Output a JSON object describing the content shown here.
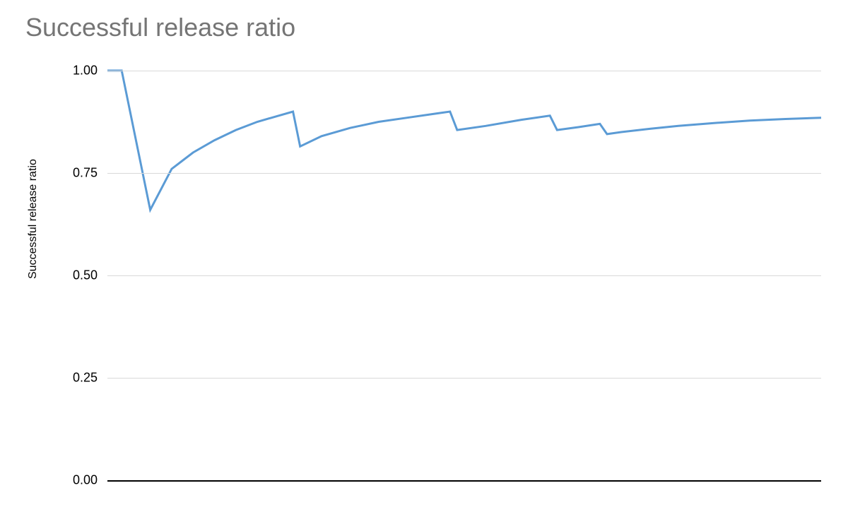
{
  "chart": {
    "type": "line",
    "title": "Successful release ratio",
    "title_fontsize": 36,
    "title_color": "#757575",
    "y_axis_label": "Successful release ratio",
    "y_axis_label_fontsize": 16,
    "y_axis_label_color": "#000000",
    "background_color": "#ffffff",
    "grid_color": "#d9d9d9",
    "axis_line_color": "#000000",
    "line_color": "#5b9bd5",
    "line_width": 3,
    "ylim": [
      0,
      1
    ],
    "yticks": [
      0.0,
      0.25,
      0.5,
      0.75,
      1.0
    ],
    "ytick_labels": [
      "0.00",
      "0.25",
      "0.50",
      "0.75",
      "1.00"
    ],
    "tick_fontsize": 18,
    "tick_color": "#000000",
    "xlim": [
      0,
      100
    ],
    "data_points": [
      {
        "x": 0,
        "y": 1.0
      },
      {
        "x": 2,
        "y": 1.0
      },
      {
        "x": 6,
        "y": 0.66
      },
      {
        "x": 9,
        "y": 0.76
      },
      {
        "x": 12,
        "y": 0.8
      },
      {
        "x": 15,
        "y": 0.83
      },
      {
        "x": 18,
        "y": 0.855
      },
      {
        "x": 21,
        "y": 0.875
      },
      {
        "x": 24,
        "y": 0.89
      },
      {
        "x": 26,
        "y": 0.9
      },
      {
        "x": 27,
        "y": 0.815
      },
      {
        "x": 30,
        "y": 0.84
      },
      {
        "x": 34,
        "y": 0.86
      },
      {
        "x": 38,
        "y": 0.875
      },
      {
        "x": 42,
        "y": 0.885
      },
      {
        "x": 46,
        "y": 0.895
      },
      {
        "x": 48,
        "y": 0.9
      },
      {
        "x": 49,
        "y": 0.855
      },
      {
        "x": 53,
        "y": 0.865
      },
      {
        "x": 58,
        "y": 0.88
      },
      {
        "x": 62,
        "y": 0.89
      },
      {
        "x": 63,
        "y": 0.855
      },
      {
        "x": 66,
        "y": 0.862
      },
      {
        "x": 69,
        "y": 0.87
      },
      {
        "x": 70,
        "y": 0.845
      },
      {
        "x": 72,
        "y": 0.85
      },
      {
        "x": 76,
        "y": 0.858
      },
      {
        "x": 80,
        "y": 0.865
      },
      {
        "x": 85,
        "y": 0.872
      },
      {
        "x": 90,
        "y": 0.878
      },
      {
        "x": 95,
        "y": 0.882
      },
      {
        "x": 100,
        "y": 0.885
      }
    ]
  }
}
